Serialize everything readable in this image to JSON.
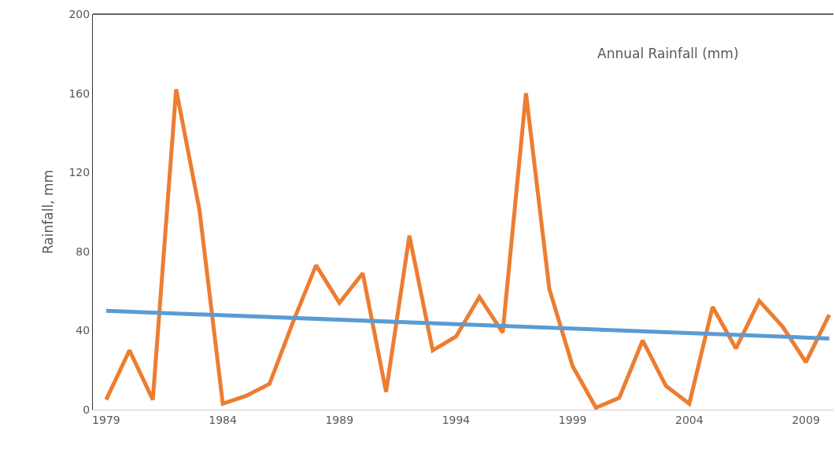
{
  "chart_data": {
    "type": "line",
    "title": "Annual Rainfall (mm)",
    "ylabel": "Rainfall, mm",
    "x": [
      1979,
      1980,
      1981,
      1982,
      1983,
      1984,
      1985,
      1986,
      1987,
      1988,
      1989,
      1990,
      1991,
      1992,
      1993,
      1994,
      1995,
      1996,
      1997,
      1998,
      1999,
      2000,
      2001,
      2002,
      2003,
      2004,
      2005,
      2006,
      2007,
      2008,
      2009,
      2010
    ],
    "series": [
      {
        "color": "#ed7d31",
        "values": [
          5,
          30,
          5,
          162,
          101,
          3,
          7,
          13,
          44,
          73,
          54,
          69,
          9,
          88,
          30,
          37,
          57,
          39,
          160,
          61,
          22,
          1,
          6,
          35,
          12,
          3,
          52,
          31,
          55,
          42,
          24,
          48
        ]
      },
      {
        "type": "line",
        "color": "#5b9bd5",
        "x": [
          1979,
          2010
        ],
        "values": [
          50,
          36
        ]
      }
    ],
    "xlim": [
      1978.43,
      2010.18
    ],
    "xticks": [
      1979,
      1984,
      1989,
      1994,
      1999,
      2004,
      2009
    ],
    "ylim": [
      0,
      200
    ],
    "yticks": [
      0,
      40,
      80,
      120,
      160,
      200
    ],
    "marker": "none",
    "line_style": "solid"
  }
}
